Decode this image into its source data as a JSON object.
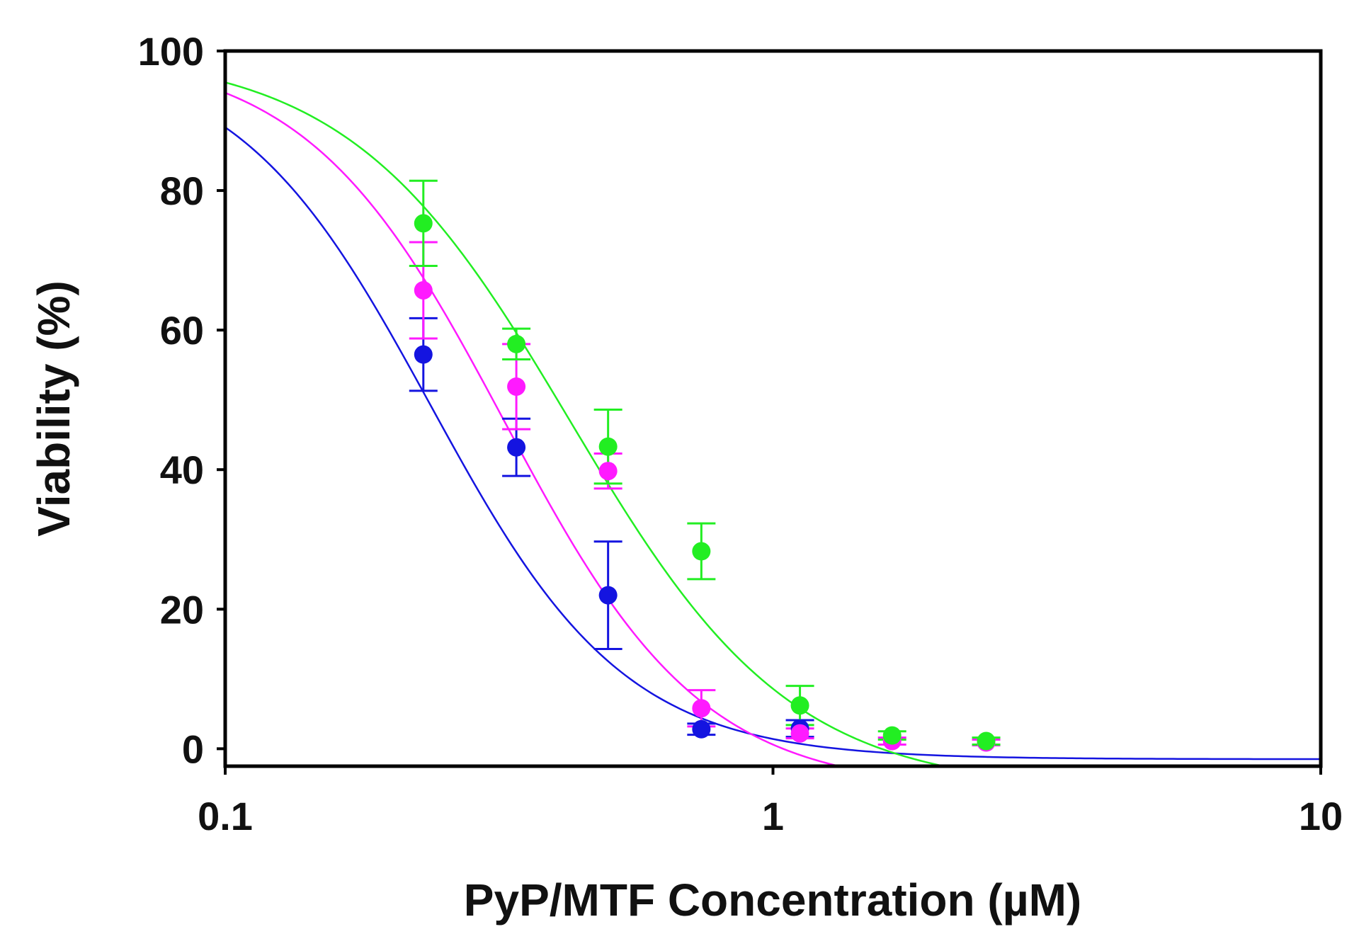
{
  "chart_data": {
    "type": "scatter",
    "title": "",
    "xlabel": "PyP/MTF Concentration (µM)",
    "ylabel": "Viability (%)",
    "xscale": "log",
    "xlim": [
      0.1,
      10
    ],
    "ylim": [
      -2.5,
      100
    ],
    "grid": false,
    "legend": "none",
    "x_ticks": [
      {
        "value": 0.1,
        "label": "0.1"
      },
      {
        "value": 1,
        "label": "1"
      },
      {
        "value": 10,
        "label": "10"
      }
    ],
    "y_ticks": [
      {
        "value": 0,
        "label": "0"
      },
      {
        "value": 20,
        "label": "20"
      },
      {
        "value": 40,
        "label": "40"
      },
      {
        "value": 60,
        "label": "60"
      },
      {
        "value": 80,
        "label": "80"
      },
      {
        "value": 100,
        "label": "100"
      }
    ],
    "series": [
      {
        "name": "blue",
        "color": "#1414e0",
        "x": [
          0.23,
          0.34,
          0.5,
          0.74,
          1.12
        ],
        "y": [
          56.5,
          43.2,
          22.0,
          2.8,
          2.9
        ],
        "err": [
          5.2,
          4.1,
          7.7,
          0.8,
          1.2
        ],
        "fit": {
          "bottom": -1.5,
          "top": 100,
          "ec50": 0.237,
          "hill": 2.45,
          "x_end": 10
        }
      },
      {
        "name": "magenta",
        "color": "#ff1aff",
        "x": [
          0.23,
          0.34,
          0.5,
          0.74,
          1.12,
          1.65,
          2.45
        ],
        "y": [
          65.7,
          51.9,
          39.8,
          5.8,
          2.2,
          1.1,
          0.9
        ],
        "err": [
          6.9,
          6.1,
          2.5,
          2.6,
          0.7,
          0.5,
          0.4
        ],
        "fit": {
          "bottom": -6,
          "top": 100,
          "ec50": 0.323,
          "hill": 2.4,
          "x_end": 3.1
        }
      },
      {
        "name": "green",
        "color": "#22ee22",
        "x": [
          0.23,
          0.34,
          0.5,
          0.74,
          1.12,
          1.65,
          2.45
        ],
        "y": [
          75.3,
          58.0,
          43.3,
          28.3,
          6.2,
          1.9,
          1.1
        ],
        "err": [
          6.1,
          2.2,
          5.3,
          4.0,
          2.8,
          0.6,
          0.5
        ],
        "fit": {
          "bottom": -6,
          "top": 100,
          "ec50": 0.426,
          "hill": 2.15,
          "x_end": 2.8
        }
      }
    ]
  }
}
